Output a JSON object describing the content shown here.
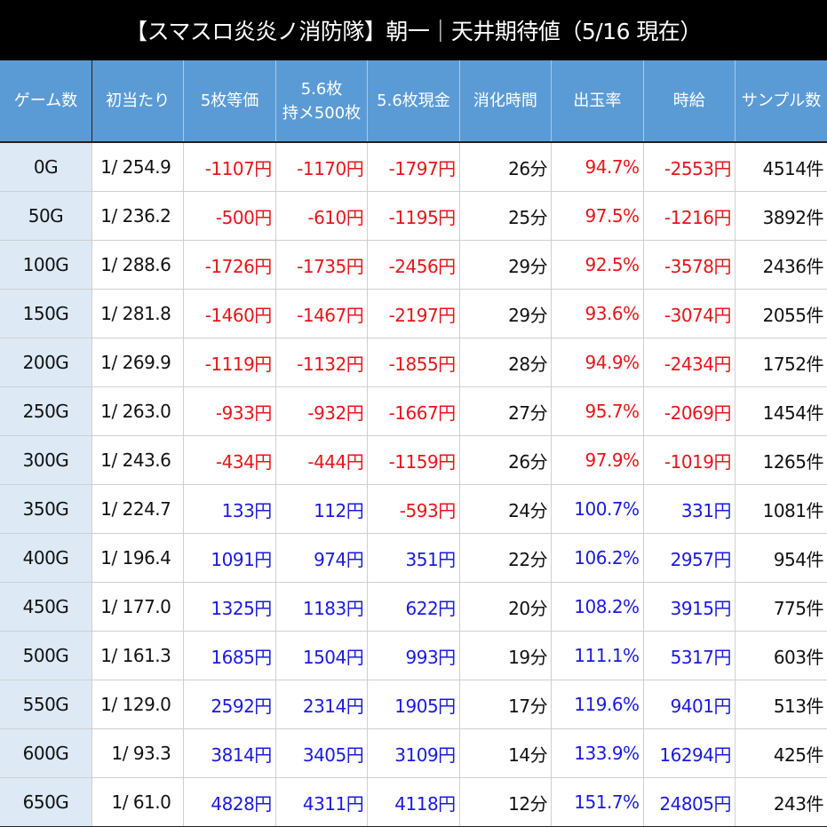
{
  "title": "【スマスロ炎炎ノ消防隊】朝一｜天井期待値（5/16 現在）",
  "headers": [
    "ゲーム数",
    "初当たり",
    "5枚等価",
    "5.6枚\n持メ500枚",
    "5.6枚現金",
    "消化時間",
    "出玉率",
    "時給",
    "サンプル数"
  ],
  "colors": {
    "header_bg": "#5b9bd5",
    "first_col_bg": "#ddeaf6",
    "negative": "#e8141b",
    "positive": "#1a1ae0"
  },
  "rows": [
    [
      "0G",
      "1/ 254.9",
      "-1107円",
      "-1170円",
      "-1797円",
      "26分",
      "94.7%",
      "-2553円",
      "4514件"
    ],
    [
      "50G",
      "1/ 236.2",
      "-500円",
      "-610円",
      "-1195円",
      "25分",
      "97.5%",
      "-1216円",
      "3892件"
    ],
    [
      "100G",
      "1/ 288.6",
      "-1726円",
      "-1735円",
      "-2456円",
      "29分",
      "92.5%",
      "-3578円",
      "2436件"
    ],
    [
      "150G",
      "1/ 281.8",
      "-1460円",
      "-1467円",
      "-2197円",
      "29分",
      "93.6%",
      "-3074円",
      "2055件"
    ],
    [
      "200G",
      "1/ 269.9",
      "-1119円",
      "-1132円",
      "-1855円",
      "28分",
      "94.9%",
      "-2434円",
      "1752件"
    ],
    [
      "250G",
      "1/ 263.0",
      "-933円",
      "-932円",
      "-1667円",
      "27分",
      "95.7%",
      "-2069円",
      "1454件"
    ],
    [
      "300G",
      "1/ 243.6",
      "-434円",
      "-444円",
      "-1159円",
      "26分",
      "97.9%",
      "-1019円",
      "1265件"
    ],
    [
      "350G",
      "1/ 224.7",
      "133円",
      "112円",
      "-593円",
      "24分",
      "100.7%",
      "331円",
      "1081件"
    ],
    [
      "400G",
      "1/ 196.4",
      "1091円",
      "974円",
      "351円",
      "22分",
      "106.2%",
      "2957円",
      "954件"
    ],
    [
      "450G",
      "1/ 177.0",
      "1325円",
      "1183円",
      "622円",
      "20分",
      "108.2%",
      "3915円",
      "775件"
    ],
    [
      "500G",
      "1/ 161.3",
      "1685円",
      "1504円",
      "993円",
      "19分",
      "111.1%",
      "5317円",
      "603件"
    ],
    [
      "550G",
      "1/ 129.0",
      "2592円",
      "2314円",
      "1905円",
      "17分",
      "119.6%",
      "9401円",
      "513件"
    ],
    [
      "600G",
      "1/ 93.3",
      "3814円",
      "3405円",
      "3109円",
      "14分",
      "133.9%",
      "16294円",
      "425件"
    ],
    [
      "650G",
      "1/ 61.0",
      "4828円",
      "4311円",
      "4118円",
      "12分",
      "151.7%",
      "24805円",
      "243件"
    ]
  ]
}
